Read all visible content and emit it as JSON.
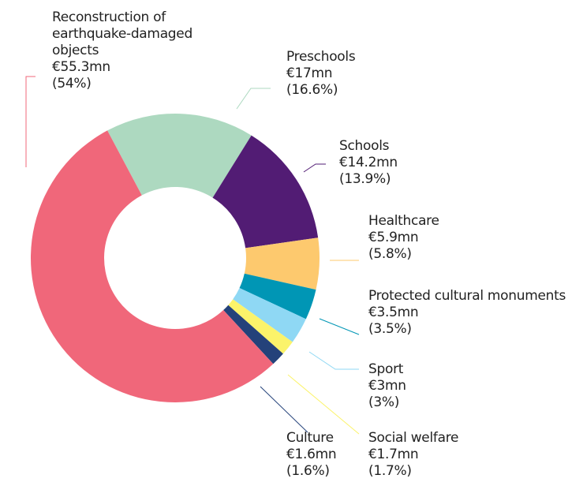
{
  "chart_data": {
    "type": "donut",
    "categories": [
      "Preschools",
      "Schools",
      "Healthcare",
      "Protected cultural monuments",
      "Sport",
      "Social welfare",
      "Culture",
      "Reconstruction of earthquake-damaged objects"
    ],
    "values": [
      17,
      14.2,
      5.9,
      3.5,
      3,
      1.7,
      1.6,
      55.3
    ],
    "value_labels": [
      "€17mn",
      "€14.2mn",
      "€5.9mn",
      "€3.5mn",
      "€3mn",
      "€1.7mn",
      "€1.6mn",
      "€55.3mn"
    ],
    "shares": [
      16.6,
      13.9,
      5.8,
      3.5,
      3,
      1.7,
      1.6,
      54
    ],
    "share_labels": [
      "(16.6%)",
      "(13.9%)",
      "(5.8%)",
      "(3.5%)",
      "(3%)",
      "(1.7%)",
      "(1.6%)",
      "(54%)"
    ],
    "colors": [
      "#add9c0",
      "#521c74",
      "#fdc96e",
      "#0096b5",
      "#8fd8f4",
      "#fbf36a",
      "#24427a",
      "#f0677a"
    ]
  }
}
